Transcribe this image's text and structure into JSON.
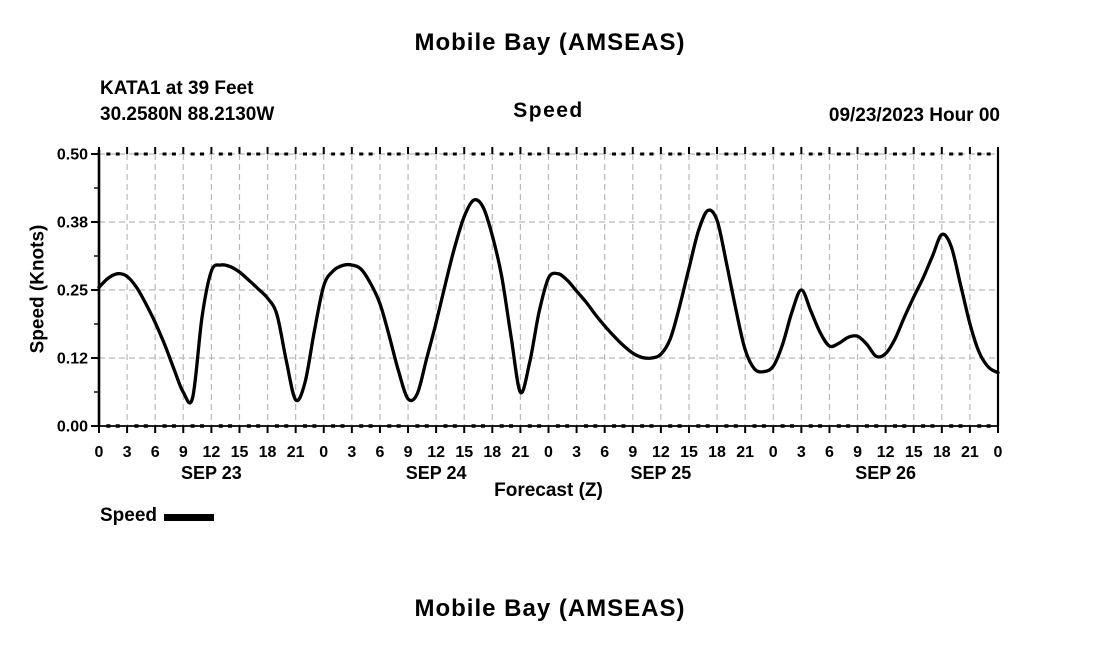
{
  "page": {
    "top_title": "Mobile Bay (AMSEAS)",
    "bottom_title": "Mobile Bay (AMSEAS)"
  },
  "header": {
    "station": "KATA1 at 39 Feet",
    "coordinates": "30.2580N  88.2130W",
    "run_date": "09/23/2023 Hour 00"
  },
  "chart_data": {
    "type": "line",
    "title": "Speed",
    "xlabel": "Forecast (Z)",
    "ylabel": "Speed (Knots)",
    "ylim": [
      0,
      0.5
    ],
    "ytick_values": [
      0,
      0.125,
      0.25,
      0.375,
      0.5
    ],
    "ytick_labels": [
      "0.00",
      "0.12",
      "0.25",
      "0.38",
      "0.50"
    ],
    "x_range_hours": [
      0,
      96
    ],
    "x_step_hours": 1,
    "xtick_step_hours": 3,
    "xtick_hour_labels": [
      "0",
      "3",
      "6",
      "9",
      "12",
      "15",
      "18",
      "21",
      "0",
      "3",
      "6",
      "9",
      "12",
      "15",
      "18",
      "21",
      "0",
      "3",
      "6",
      "9",
      "12",
      "15",
      "18",
      "21",
      "0",
      "3",
      "6",
      "9",
      "12",
      "15",
      "18",
      "21",
      "0"
    ],
    "day_labels": [
      "SEP 23",
      "SEP 24",
      "SEP 25",
      "SEP 26"
    ],
    "grid": "dashed gray every 3 hours and at 0.12 / 0.25 / 0.38 / 0.50",
    "legend_position": "bottom-left",
    "colors": {
      "line": "#000000",
      "grid": "#b9b9b9",
      "text": "#000000"
    },
    "series": [
      {
        "name": "Speed",
        "values": [
          0.255,
          0.272,
          0.28,
          0.275,
          0.255,
          0.225,
          0.19,
          0.15,
          0.105,
          0.062,
          0.052,
          0.2,
          0.285,
          0.296,
          0.293,
          0.283,
          0.268,
          0.252,
          0.235,
          0.205,
          0.12,
          0.048,
          0.08,
          0.175,
          0.258,
          0.285,
          0.295,
          0.296,
          0.288,
          0.262,
          0.225,
          0.165,
          0.1,
          0.05,
          0.06,
          0.125,
          0.19,
          0.262,
          0.33,
          0.385,
          0.415,
          0.403,
          0.35,
          0.275,
          0.165,
          0.062,
          0.118,
          0.21,
          0.272,
          0.28,
          0.268,
          0.248,
          0.228,
          0.205,
          0.184,
          0.165,
          0.148,
          0.134,
          0.126,
          0.125,
          0.132,
          0.16,
          0.22,
          0.29,
          0.358,
          0.396,
          0.378,
          0.3,
          0.215,
          0.14,
          0.105,
          0.1,
          0.11,
          0.15,
          0.21,
          0.25,
          0.212,
          0.172,
          0.147,
          0.152,
          0.163,
          0.165,
          0.15,
          0.128,
          0.133,
          0.16,
          0.2,
          0.237,
          0.272,
          0.312,
          0.352,
          0.33,
          0.26,
          0.188,
          0.135,
          0.108,
          0.098
        ]
      }
    ]
  }
}
